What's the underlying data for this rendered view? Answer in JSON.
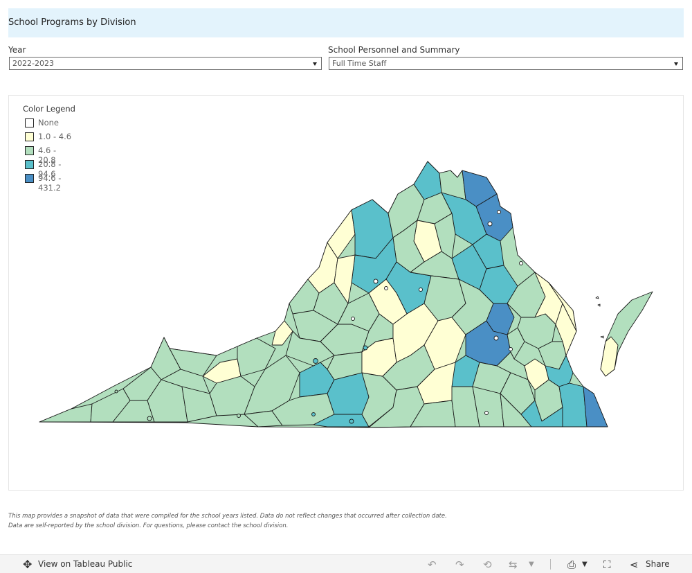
{
  "header": {
    "title": "School Programs by Division"
  },
  "filters": {
    "year": {
      "label": "Year",
      "value": "2022-2023"
    },
    "personnel": {
      "label": "School Personnel and Summary",
      "value": "Full Time Staff"
    }
  },
  "legend": {
    "title": "Color Legend",
    "items": [
      {
        "label": "None",
        "color": "#ffffff"
      },
      {
        "label": "1.0 - 4.6",
        "color": "#ffffd4"
      },
      {
        "label": "4.6 - 20.8",
        "color": "#b2dfbe"
      },
      {
        "label": "20.8 - 94.6",
        "color": "#5ac0cb"
      },
      {
        "label": "94.6 - 431.2",
        "color": "#4a8fc5"
      }
    ]
  },
  "map": {
    "region": "Virginia school divisions",
    "border_color": "#1a1a1a"
  },
  "footnotes": [
    "This map provides a snapshot of data that were compiled for the  school years listed. Data do not reflect changes that occurred after collection date.",
    "Data are self-reported by the school division. For questions, please contact the school division."
  ],
  "toolbar": {
    "view_label": "View on Tableau Public",
    "share_label": "Share",
    "icons": [
      "tableau-icon",
      "undo-icon",
      "redo-icon",
      "revert-icon",
      "refresh-icon",
      "download-icon",
      "fullscreen-icon",
      "share-icon"
    ]
  }
}
